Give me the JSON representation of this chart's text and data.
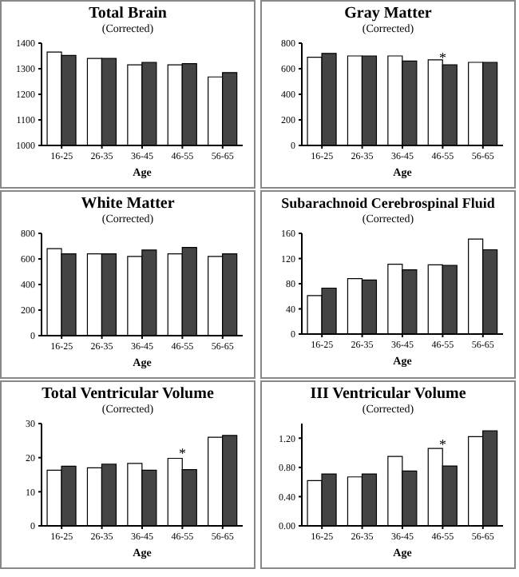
{
  "chart_data": [
    {
      "type": "bar",
      "title": "Total Brain",
      "subtitle": "(Corrected)",
      "xlabel": "Age",
      "categories": [
        "16-25",
        "26-35",
        "36-45",
        "46-55",
        "56-65"
      ],
      "series": [
        {
          "color": "#ffffff",
          "values": [
            1365,
            1340,
            1315,
            1315,
            1268
          ]
        },
        {
          "color": "#444444",
          "values": [
            1352,
            1340,
            1325,
            1320,
            1285
          ]
        }
      ],
      "ylim": [
        1000,
        1400
      ],
      "yticks": [
        1000,
        1100,
        1200,
        1300,
        1400
      ],
      "grid": false,
      "legend": false
    },
    {
      "type": "bar",
      "title": "Gray Matter",
      "subtitle": "(Corrected)",
      "xlabel": "Age",
      "categories": [
        "16-25",
        "26-35",
        "36-45",
        "46-55",
        "56-65"
      ],
      "series": [
        {
          "color": "#ffffff",
          "values": [
            690,
            700,
            700,
            670,
            650
          ]
        },
        {
          "color": "#444444",
          "values": [
            720,
            700,
            660,
            630,
            650
          ]
        }
      ],
      "ylim": [
        0,
        800
      ],
      "yticks": [
        0,
        200,
        400,
        600,
        800
      ],
      "grid": false,
      "legend": false,
      "annotations": [
        {
          "text": "*",
          "x": "46-55",
          "y": 690
        }
      ]
    },
    {
      "type": "bar",
      "title": "White Matter",
      "subtitle": "(Corrected)",
      "xlabel": "Age",
      "categories": [
        "16-25",
        "26-35",
        "36-45",
        "46-55",
        "56-65"
      ],
      "series": [
        {
          "color": "#ffffff",
          "values": [
            680,
            640,
            620,
            640,
            620
          ]
        },
        {
          "color": "#444444",
          "values": [
            640,
            640,
            670,
            690,
            640
          ]
        }
      ],
      "ylim": [
        0,
        800
      ],
      "yticks": [
        0,
        200,
        400,
        600,
        800
      ],
      "grid": false,
      "legend": false
    },
    {
      "type": "bar",
      "title": "Subarachnoid Cerebrospinal Fluid",
      "subtitle": "(Corrected)",
      "xlabel": "Age",
      "categories": [
        "16-25",
        "26-35",
        "36-45",
        "46-55",
        "56-65"
      ],
      "series": [
        {
          "color": "#ffffff",
          "values": [
            61,
            88,
            111,
            110,
            151
          ]
        },
        {
          "color": "#444444",
          "values": [
            73,
            86,
            102,
            109,
            134
          ]
        }
      ],
      "ylim": [
        0,
        160
      ],
      "yticks": [
        0,
        40,
        80,
        120,
        160
      ],
      "grid": false,
      "legend": false
    },
    {
      "type": "bar",
      "title": "Total Ventricular Volume",
      "subtitle": "(Corrected)",
      "xlabel": "Age",
      "categories": [
        "16-25",
        "26-35",
        "36-45",
        "46-55",
        "56-65"
      ],
      "series": [
        {
          "color": "#ffffff",
          "values": [
            16.3,
            17,
            18.3,
            19.8,
            26
          ]
        },
        {
          "color": "#444444",
          "values": [
            17.5,
            18.1,
            16.3,
            16.5,
            26.5
          ]
        }
      ],
      "ylim": [
        0,
        30
      ],
      "yticks": [
        0,
        10,
        20,
        30
      ],
      "grid": false,
      "legend": false,
      "annotations": [
        {
          "text": "*",
          "x": "46-55",
          "y": 21.5
        }
      ]
    },
    {
      "type": "bar",
      "title": "III Ventricular Volume",
      "subtitle": "(Corrected)",
      "xlabel": "Age",
      "categories": [
        "16-25",
        "26-35",
        "36-45",
        "46-55",
        "56-65"
      ],
      "series": [
        {
          "color": "#ffffff",
          "values": [
            0.62,
            0.67,
            0.95,
            1.06,
            1.22
          ]
        },
        {
          "color": "#444444",
          "values": [
            0.71,
            0.71,
            0.75,
            0.82,
            1.3
          ]
        }
      ],
      "ylim": [
        0,
        1.4
      ],
      "yticks": [
        {
          "value": 0,
          "label": "0.00"
        },
        {
          "value": 0.4,
          "label": "0.40"
        },
        {
          "value": 0.8,
          "label": "0.80"
        },
        {
          "value": 1.2,
          "label": "1.20"
        }
      ],
      "grid": false,
      "legend": false,
      "annotations": [
        {
          "text": "*",
          "x": "46-55",
          "y": 1.12
        }
      ]
    }
  ]
}
